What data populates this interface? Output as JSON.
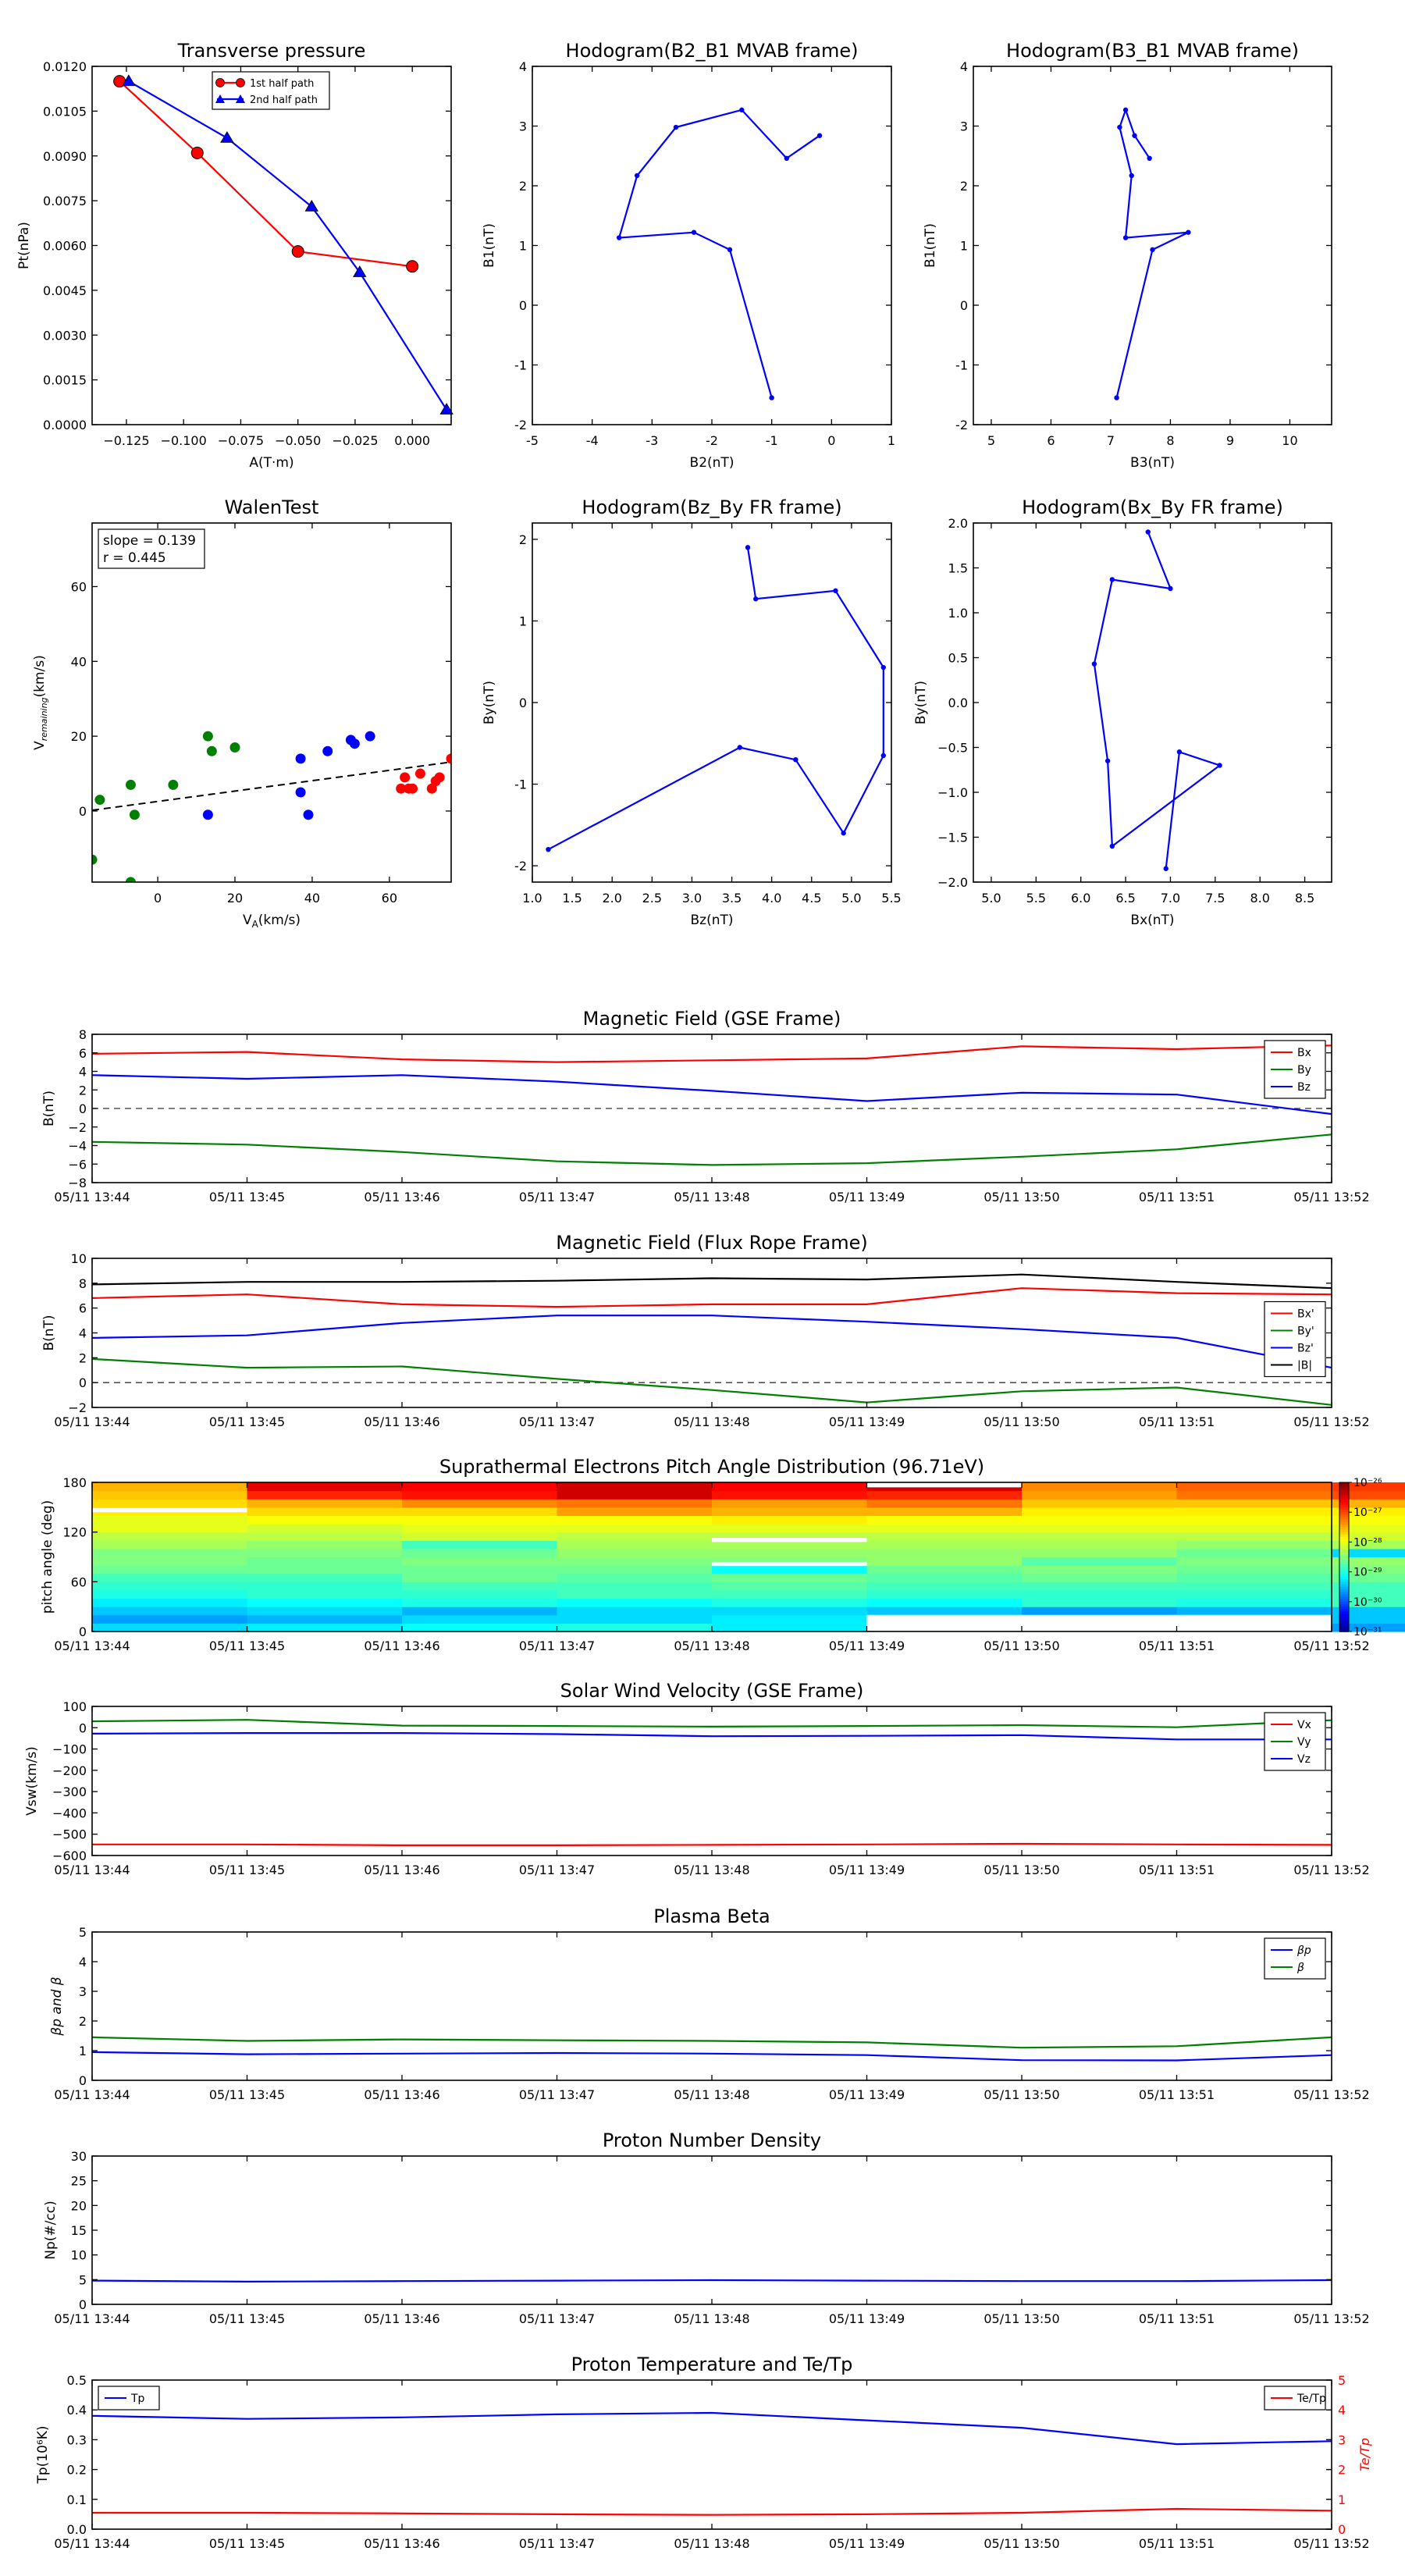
{
  "chart_data": [
    {
      "id": "tp",
      "type": "line",
      "title": "Transverse pressure",
      "xlabel": "A(T·m)",
      "ylabel": "Pt(nPa)",
      "xlim": [
        -0.14,
        0.017
      ],
      "ylim": [
        0,
        0.012
      ],
      "xticks": [
        -0.125,
        -0.1,
        -0.075,
        -0.05,
        -0.025,
        0.0
      ],
      "xtick_labels": [
        "−0.125",
        "−0.100",
        "−0.075",
        "−0.050",
        "−0.025",
        "0.000"
      ],
      "yticks": [
        0,
        0.0015,
        0.003,
        0.0045,
        0.006,
        0.0075,
        0.009,
        0.0105,
        0.012
      ],
      "ytick_labels": [
        "0.0000",
        "0.0015",
        "0.0030",
        "0.0045",
        "0.0060",
        "0.0075",
        "0.0090",
        "0.0105",
        "0.0120"
      ],
      "legend": "top-center",
      "series": [
        {
          "name": "1st half path",
          "color": "#ff0000",
          "marker": "circle",
          "x": [
            -0.128,
            -0.094,
            -0.05,
            0.0
          ],
          "y": [
            0.0115,
            0.0091,
            0.0058,
            0.0053
          ]
        },
        {
          "name": "2nd half path",
          "color": "#0000ff",
          "marker": "triangle",
          "x": [
            -0.124,
            -0.081,
            -0.044,
            -0.023,
            0.015
          ],
          "y": [
            0.0115,
            0.0096,
            0.0073,
            0.0051,
            0.0005
          ]
        }
      ]
    },
    {
      "id": "h1",
      "type": "line",
      "title": "Hodogram(B2_B1 MVAB frame)",
      "xlabel": "B2(nT)",
      "ylabel": "B1(nT)",
      "xlim": [
        -5,
        1
      ],
      "ylim": [
        -2,
        4
      ],
      "xticks": [
        -5,
        -4,
        -3,
        -2,
        -1,
        0,
        1
      ],
      "yticks": [
        -2,
        -1,
        0,
        1,
        2,
        3,
        4
      ],
      "series": [
        {
          "color": "#0000ff",
          "marker": "dot",
          "x": [
            -1.0,
            -1.7,
            -2.3,
            -3.55,
            -3.25,
            -2.6,
            -1.5,
            -0.75,
            -0.2
          ],
          "y": [
            -1.55,
            0.93,
            1.22,
            1.13,
            2.17,
            2.98,
            3.27,
            2.46,
            2.84
          ]
        }
      ]
    },
    {
      "id": "h2",
      "type": "line",
      "title": "Hodogram(B3_B1 MVAB frame)",
      "xlabel": "B3(nT)",
      "ylabel": "B1(nT)",
      "xlim": [
        4.7,
        10.7
      ],
      "ylim": [
        -2,
        4
      ],
      "xticks": [
        5,
        6,
        7,
        8,
        9,
        10
      ],
      "yticks": [
        -2,
        -1,
        0,
        1,
        2,
        3,
        4
      ],
      "series": [
        {
          "color": "#0000ff",
          "marker": "dot",
          "x": [
            7.1,
            7.7,
            8.3,
            7.25,
            7.35,
            7.15,
            7.25,
            7.4,
            7.65
          ],
          "y": [
            -1.55,
            0.93,
            1.22,
            1.13,
            2.17,
            2.98,
            3.27,
            2.84,
            2.46
          ]
        }
      ]
    },
    {
      "id": "walen",
      "type": "scatter",
      "title": "WalenTest",
      "xlabel": "V_A(km/s)",
      "ylabel": "V_remaining(km/s)",
      "xlim": [
        -17,
        76
      ],
      "ylim": [
        -19,
        77
      ],
      "xticks": [
        0,
        20,
        40,
        60
      ],
      "yticks": [
        0,
        20,
        40,
        60
      ],
      "annotations": [
        "slope = 0.139",
        "r = 0.445"
      ],
      "fit": {
        "x": [
          -17,
          76
        ],
        "y": [
          0.2,
          13.1
        ]
      },
      "series": [
        {
          "color": "#008000",
          "x": [
            -17,
            -15,
            -7,
            -6,
            -7,
            4,
            13,
            14,
            20
          ],
          "y": [
            -13,
            3,
            7,
            -1,
            -19,
            7,
            20,
            16,
            17
          ]
        },
        {
          "color": "#0000ff",
          "x": [
            13,
            37,
            37,
            39,
            44,
            50,
            51,
            55
          ],
          "y": [
            -1,
            14,
            5,
            -1,
            16,
            19,
            18,
            20
          ]
        },
        {
          "color": "#ff0000",
          "x": [
            63,
            65,
            64,
            66,
            68,
            71,
            72,
            73,
            76
          ],
          "y": [
            6,
            6,
            9,
            6,
            10,
            6,
            8,
            9,
            14
          ]
        }
      ]
    },
    {
      "id": "h3",
      "type": "line",
      "title": "Hodogram(Bz_By FR frame)",
      "xlabel": "Bz(nT)",
      "ylabel": "By(nT)",
      "xlim": [
        1.0,
        5.5
      ],
      "ylim": [
        -2.2,
        2.2
      ],
      "xticks": [
        1.0,
        1.5,
        2.0,
        2.5,
        3.0,
        3.5,
        4.0,
        4.5,
        5.0,
        5.5
      ],
      "xtick_labels": [
        "1.0",
        "1.5",
        "2.0",
        "2.5",
        "3.0",
        "3.5",
        "4.0",
        "4.5",
        "5.0",
        "5.5"
      ],
      "yticks": [
        -2,
        -1,
        0,
        1,
        2
      ],
      "series": [
        {
          "color": "#0000ff",
          "marker": "dot",
          "x": [
            1.2,
            3.6,
            4.3,
            4.9,
            5.4,
            5.4,
            4.8,
            3.8,
            3.7
          ],
          "y": [
            -1.8,
            -0.55,
            -0.7,
            -1.6,
            -0.65,
            0.43,
            1.37,
            1.27,
            1.9
          ]
        }
      ]
    },
    {
      "id": "h4",
      "type": "line",
      "title": "Hodogram(Bx_By FR frame)",
      "xlabel": "Bx(nT)",
      "ylabel": "By(nT)",
      "xlim": [
        4.8,
        8.8
      ],
      "ylim": [
        -2.0,
        2.0
      ],
      "xticks": [
        5.0,
        5.5,
        6.0,
        6.5,
        7.0,
        7.5,
        8.0,
        8.5
      ],
      "xtick_labels": [
        "5.0",
        "5.5",
        "6.0",
        "6.5",
        "7.0",
        "7.5",
        "8.0",
        "8.5"
      ],
      "yticks": [
        -2.0,
        -1.5,
        -1.0,
        -0.5,
        0.0,
        0.5,
        1.0,
        1.5,
        2.0
      ],
      "ytick_labels": [
        "−2.0",
        "−1.5",
        "−1.0",
        "−0.5",
        "0.0",
        "0.5",
        "1.0",
        "1.5",
        "2.0"
      ],
      "series": [
        {
          "color": "#0000ff",
          "marker": "dot",
          "x": [
            6.95,
            7.1,
            7.55,
            6.35,
            6.3,
            6.15,
            6.35,
            7.0,
            6.75
          ],
          "y": [
            -1.85,
            -0.55,
            -0.7,
            -1.6,
            -0.65,
            0.43,
            1.37,
            1.27,
            1.9
          ]
        }
      ]
    },
    {
      "id": "mag_gse",
      "type": "line",
      "title": "Magnetic Field (GSE Frame)",
      "ylabel": "B(nT)",
      "ylim": [
        -8,
        8
      ],
      "yticks": [
        -8,
        -6,
        -4,
        -2,
        0,
        2,
        4,
        6,
        8
      ],
      "ytick_labels": [
        "−8",
        "−6",
        "−4",
        "−2",
        "0",
        "2",
        "4",
        "6",
        "8"
      ],
      "zero_line": true,
      "legend": "top-right",
      "series": [
        {
          "name": "Bx",
          "color": "#ff0000",
          "values": [
            5.9,
            6.1,
            5.3,
            5.0,
            5.2,
            5.4,
            6.7,
            6.4,
            6.8
          ]
        },
        {
          "name": "By",
          "color": "#008000",
          "values": [
            -3.6,
            -3.9,
            -4.7,
            -5.7,
            -6.1,
            -5.9,
            -5.2,
            -4.4,
            -2.8
          ]
        },
        {
          "name": "Bz",
          "color": "#0000ff",
          "values": [
            3.6,
            3.2,
            3.6,
            2.9,
            1.9,
            0.8,
            1.7,
            1.5,
            -0.6
          ]
        }
      ]
    },
    {
      "id": "mag_fr",
      "type": "line",
      "title": "Magnetic Field (Flux Rope Frame)",
      "ylabel": "B(nT)",
      "ylim": [
        -2,
        10
      ],
      "yticks": [
        -2,
        0,
        2,
        4,
        6,
        8,
        10
      ],
      "ytick_labels": [
        "−2",
        "0",
        "2",
        "4",
        "6",
        "8",
        "10"
      ],
      "zero_line": true,
      "legend": "right",
      "series": [
        {
          "name": "Bx'",
          "color": "#ff0000",
          "values": [
            6.8,
            7.1,
            6.3,
            6.1,
            6.3,
            6.3,
            7.6,
            7.2,
            7.1
          ]
        },
        {
          "name": "By'",
          "color": "#008000",
          "values": [
            1.9,
            1.2,
            1.3,
            0.3,
            -0.6,
            -1.6,
            -0.7,
            -0.4,
            -1.8
          ]
        },
        {
          "name": "Bz'",
          "color": "#0000ff",
          "values": [
            3.6,
            3.8,
            4.8,
            5.4,
            5.4,
            4.9,
            4.3,
            3.6,
            1.2
          ]
        },
        {
          "name": "|B|",
          "color": "#000000",
          "values": [
            7.9,
            8.1,
            8.1,
            8.2,
            8.4,
            8.3,
            8.7,
            8.1,
            7.6
          ]
        }
      ]
    },
    {
      "id": "pad",
      "type": "heatmap",
      "title": "Suprathermal Electrons Pitch Angle Distribution (96.71eV)",
      "ylabel": "pitch angle (deg)",
      "ylim": [
        0,
        180
      ],
      "yticks": [
        0,
        60,
        120,
        180
      ],
      "colorbar_labels": [
        "10⁻²⁶",
        "10⁻²⁷",
        "10⁻²⁸",
        "10⁻²⁹",
        "10⁻³⁰",
        "10⁻³¹"
      ],
      "colorbar_exponents": [
        -26,
        -27,
        -28,
        -29,
        -30,
        -31
      ],
      "colorbar_range": [
        -31,
        -26
      ],
      "bin_edges_deg": [
        0,
        10,
        20,
        30,
        40,
        50,
        60,
        70,
        80,
        90,
        100,
        110,
        120,
        130,
        140,
        150,
        160,
        170,
        180
      ],
      "log10_values": [
        [
          -29.3,
          -29.2,
          -29.1,
          -29.0,
          -29.2,
          -29.3,
          -29.4,
          -29.4,
          -29.6
        ],
        [
          -29.6,
          -29.5,
          -29.3,
          -29.3,
          -29.2,
          -29.3,
          -29.6,
          -29.5,
          -29.4
        ],
        [
          -29.4,
          -29.3,
          -29.5,
          -29.3,
          -29.3,
          -29.4,
          -29.6,
          -29.5,
          -29.4
        ],
        [
          -29.2,
          -29.1,
          -29.0,
          -29.1,
          -29.0,
          -29.1,
          -28.9,
          -29.0,
          -28.8
        ],
        [
          -29.0,
          -28.9,
          -28.9,
          -28.8,
          -28.8,
          -28.9,
          -28.9,
          -28.9,
          -28.8
        ],
        [
          -28.9,
          -28.9,
          -28.8,
          -28.8,
          -28.7,
          -28.8,
          -28.8,
          -28.8,
          -28.8
        ],
        [
          -28.8,
          -28.8,
          -28.6,
          -28.7,
          -28.6,
          -28.7,
          -28.6,
          -28.7,
          -28.6
        ],
        [
          -28.6,
          -28.6,
          -28.6,
          -28.6,
          -29.1,
          -28.6,
          -28.5,
          -28.6,
          -28.5
        ],
        [
          -28.5,
          -28.6,
          -28.5,
          -28.5,
          -28.5,
          -28.4,
          -28.7,
          -28.5,
          -28.4
        ],
        [
          -28.5,
          -28.5,
          -28.6,
          -28.4,
          -28.4,
          -28.4,
          -28.4,
          -28.6,
          -29.3
        ],
        [
          -28.3,
          -28.4,
          -28.8,
          -28.3,
          -28.3,
          -28.3,
          -28.3,
          -28.4,
          -28.3
        ],
        [
          -28.2,
          -28.2,
          -28.1,
          -28.2,
          -28.2,
          -28.2,
          -28.2,
          -28.2,
          -28.1
        ],
        [
          -28.0,
          -28.1,
          -28.0,
          -28.0,
          -28.0,
          -28.0,
          -28.0,
          -28.0,
          -28.0
        ],
        [
          -28.0,
          -27.9,
          -27.9,
          -27.9,
          -27.8,
          -27.9,
          -27.9,
          -27.9,
          -27.9
        ],
        [
          -27.8,
          -27.7,
          -27.7,
          -27.4,
          -27.5,
          -27.5,
          -27.8,
          -27.8,
          -27.8
        ],
        [
          -27.7,
          -27.5,
          -27.3,
          -27.2,
          -27.4,
          -27.2,
          -27.6,
          -27.6,
          -27.5
        ],
        [
          -27.6,
          -26.8,
          -26.7,
          -26.4,
          -26.7,
          -26.8,
          -27.4,
          -27.2,
          -27.0
        ],
        [
          -27.5,
          -26.5,
          -26.6,
          -26.4,
          -26.6,
          -26.4,
          -27.3,
          -27.1,
          -26.9
        ]
      ],
      "white_segments": [
        {
          "column": 1,
          "deg": [
            144,
            149
          ]
        },
        {
          "column": 5,
          "deg": [
            79,
            84
          ]
        },
        {
          "column": 5,
          "deg": [
            108,
            113
          ]
        },
        {
          "column": 6,
          "deg": [
            174,
            180
          ]
        },
        {
          "column": 6,
          "deg": [
            0,
            20
          ]
        },
        {
          "column": 7,
          "deg": [
            0,
            20
          ]
        },
        {
          "column": 8,
          "deg": [
            0,
            20
          ]
        }
      ]
    },
    {
      "id": "vel",
      "type": "line",
      "title": "Solar Wind Velocity (GSE Frame)",
      "ylabel": "Vsw(km/s)",
      "ylim": [
        -600,
        100
      ],
      "yticks": [
        -600,
        -500,
        -400,
        -300,
        -200,
        -100,
        0,
        100
      ],
      "ytick_labels": [
        "−600",
        "−500",
        "−400",
        "−300",
        "−200",
        "−100",
        "0",
        "100"
      ],
      "legend": "top-right",
      "series": [
        {
          "name": "Vx",
          "color": "#ff0000",
          "values": [
            -548,
            -548,
            -552,
            -552,
            -550,
            -548,
            -545,
            -548,
            -550
          ]
        },
        {
          "name": "Vy",
          "color": "#008000",
          "values": [
            30,
            37,
            10,
            8,
            5,
            8,
            12,
            2,
            35
          ]
        },
        {
          "name": "Vz",
          "color": "#0000ff",
          "values": [
            -28,
            -25,
            -25,
            -30,
            -40,
            -38,
            -35,
            -55,
            -55
          ]
        }
      ]
    },
    {
      "id": "beta",
      "type": "line",
      "title": "Plasma Beta",
      "ylabel": "βp and β",
      "ylim": [
        0,
        5
      ],
      "yticks": [
        0,
        1,
        2,
        3,
        4,
        5
      ],
      "legend": "top-right",
      "series": [
        {
          "name": "βp",
          "color": "#0000ff",
          "values": [
            0.95,
            0.88,
            0.9,
            0.92,
            0.9,
            0.85,
            0.68,
            0.67,
            0.85
          ]
        },
        {
          "name": "β",
          "color": "#008000",
          "values": [
            1.45,
            1.33,
            1.38,
            1.35,
            1.33,
            1.28,
            1.1,
            1.15,
            1.45
          ]
        }
      ]
    },
    {
      "id": "np",
      "type": "line",
      "title": "Proton Number Density",
      "ylabel": "Np(#/cc)",
      "ylim": [
        0,
        30
      ],
      "yticks": [
        0,
        5,
        10,
        15,
        20,
        25,
        30
      ],
      "series": [
        {
          "color": "#0000ff",
          "values": [
            4.8,
            4.6,
            4.7,
            4.8,
            4.9,
            4.8,
            4.7,
            4.7,
            4.9
          ]
        }
      ]
    },
    {
      "id": "temp",
      "type": "line",
      "title": "Proton Temperature and Te/Tp",
      "ylabel": "Tp(10⁶K)",
      "ylim": [
        0,
        0.5
      ],
      "yticks": [
        0,
        0.1,
        0.2,
        0.3,
        0.4,
        0.5
      ],
      "ytick_labels": [
        "0.0",
        "0.1",
        "0.2",
        "0.3",
        "0.4",
        "0.5"
      ],
      "y2label": "Te/Tp",
      "y2lim": [
        0,
        5
      ],
      "y2ticks": [
        0,
        1,
        2,
        3,
        4,
        5
      ],
      "legend": "top-left",
      "legend2": "top-right",
      "series": [
        {
          "name": "Tp",
          "color": "#0000ff",
          "values": [
            0.38,
            0.37,
            0.375,
            0.385,
            0.39,
            0.365,
            0.34,
            0.285,
            0.295
          ]
        },
        {
          "name": "Te/Tp",
          "color": "#ff0000",
          "axis": "right",
          "values": [
            0.55,
            0.55,
            0.53,
            0.5,
            0.48,
            0.5,
            0.55,
            0.68,
            0.62
          ]
        }
      ]
    }
  ],
  "time_axis": {
    "categories": [
      "05/11 13:44",
      "05/11 13:45",
      "05/11 13:46",
      "05/11 13:47",
      "05/11 13:48",
      "05/11 13:49",
      "05/11 13:50",
      "05/11 13:51",
      "05/11 13:52"
    ]
  }
}
